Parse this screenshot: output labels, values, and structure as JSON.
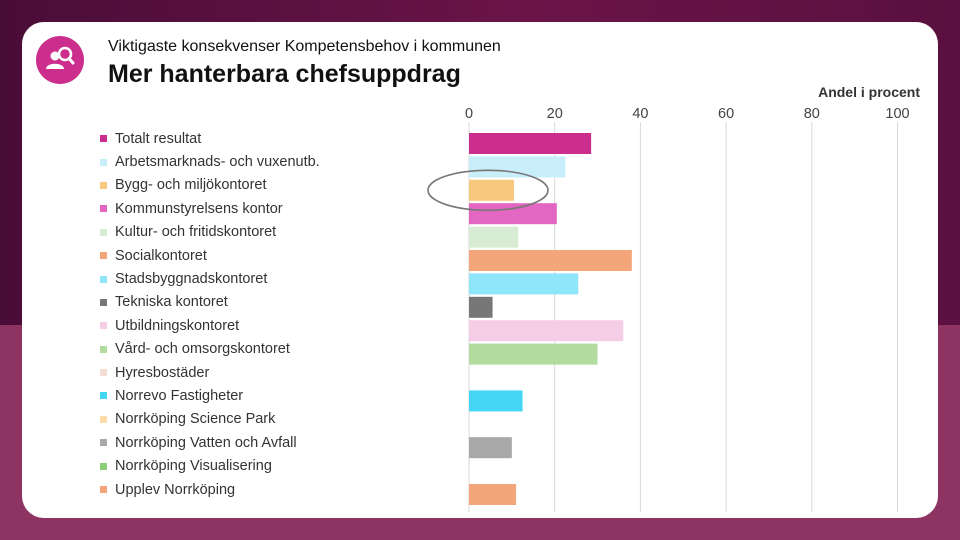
{
  "header": {
    "subtitle": "Viktigaste konsekvenser Kompetensbehov i kommunen",
    "title": "Mer hanterbara chefsuppdrag"
  },
  "logo": {
    "icon": "person-search-icon",
    "color": "#cc2e8e"
  },
  "chart_data": {
    "type": "bar",
    "orientation": "horizontal",
    "title": "Mer hanterbara chefsuppdrag",
    "ylabel": "Andel i procent",
    "xlim": [
      0,
      100
    ],
    "x_ticks": [
      0,
      20,
      40,
      60,
      80,
      100
    ],
    "grid": true,
    "legend_position": "left",
    "categories": [
      "Totalt resultat",
      "Arbetsmarknads- och vuxenutb.",
      "Bygg- och miljökontoret",
      "Kommunstyrelsens kontor",
      "Kultur- och fritidskontoret",
      "Socialkontoret",
      "Stadsbyggnadskontoret",
      "Tekniska kontoret",
      "Utbildningskontoret",
      "Vård- och omsorgskontoret",
      "Hyresbostäder",
      "Norrevo Fastigheter",
      "Norrköping Science Park",
      "Norrköping Vatten och Avfall",
      "Norrköping Visualisering",
      "Upplev Norrköping"
    ],
    "values": [
      28.5,
      22.5,
      10.5,
      20.5,
      11.5,
      38,
      25.5,
      5.5,
      36,
      30,
      0,
      12.5,
      0,
      10,
      0,
      11
    ],
    "colors": [
      "#cc2e8e",
      "#c8eefa",
      "#f8c97c",
      "#e366c2",
      "#d8ecd3",
      "#f3a67a",
      "#8fe6fb",
      "#777777",
      "#f6cde6",
      "#b2dc9f",
      "#f6ddd3",
      "#45d6f6",
      "#fbdba8",
      "#a8a8a8",
      "#8ccf7a",
      "#f3a67a"
    ],
    "annotation": {
      "shape": "ellipse",
      "target": "Bygg- och miljökontoret"
    }
  }
}
